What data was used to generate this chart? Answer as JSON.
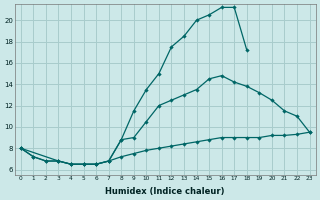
{
  "xlabel": "Humidex (Indice chaleur)",
  "bg_color": "#cce8e8",
  "grid_color": "#a8cccc",
  "line_color": "#006666",
  "xlim": [
    -0.5,
    23.5
  ],
  "ylim": [
    5.5,
    21.5
  ],
  "yticks": [
    6,
    8,
    10,
    12,
    14,
    16,
    18,
    20
  ],
  "xticks": [
    0,
    1,
    2,
    3,
    4,
    5,
    6,
    7,
    8,
    9,
    10,
    11,
    12,
    13,
    14,
    15,
    16,
    17,
    18,
    19,
    20,
    21,
    22,
    23
  ],
  "series_upper_x": [
    0,
    1,
    2,
    3,
    4,
    5,
    6,
    7,
    8,
    9,
    10,
    11,
    12,
    13,
    14,
    15,
    16,
    17,
    18
  ],
  "series_upper_y": [
    8.0,
    7.2,
    6.8,
    6.8,
    6.5,
    6.5,
    6.5,
    6.8,
    8.8,
    11.5,
    13.5,
    15.0,
    17.5,
    18.5,
    20.0,
    20.5,
    21.2,
    21.2,
    17.2
  ],
  "series_mid_x": [
    0,
    3,
    4,
    5,
    6,
    7,
    8,
    9,
    10,
    11,
    12,
    13,
    14,
    15,
    16,
    17,
    18,
    19,
    20,
    21,
    22,
    23
  ],
  "series_mid_y": [
    8.0,
    6.8,
    6.5,
    6.5,
    6.5,
    6.8,
    8.8,
    9.0,
    10.5,
    12.0,
    12.5,
    13.0,
    13.5,
    14.5,
    14.8,
    14.2,
    13.8,
    13.2,
    12.5,
    11.5,
    11.0,
    9.5
  ],
  "series_lower_x": [
    0,
    1,
    2,
    3,
    4,
    5,
    6,
    7,
    8,
    9,
    10,
    11,
    12,
    13,
    14,
    15,
    16,
    17,
    18,
    19,
    20,
    21,
    22,
    23
  ],
  "series_lower_y": [
    8.0,
    7.2,
    6.8,
    6.8,
    6.5,
    6.5,
    6.5,
    6.8,
    7.2,
    7.5,
    7.8,
    8.0,
    8.2,
    8.4,
    8.6,
    8.8,
    9.0,
    9.0,
    9.0,
    9.0,
    9.2,
    9.2,
    9.3,
    9.5
  ]
}
